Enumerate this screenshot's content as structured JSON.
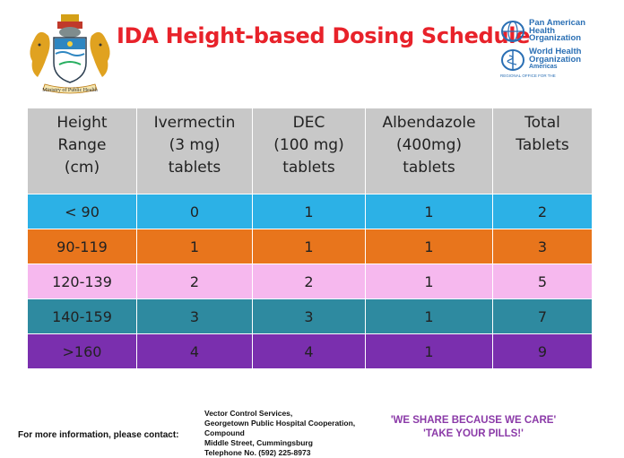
{
  "title": "IDA Height-based Dosing Schedule",
  "crest": {
    "caption": "Ministry of Public Health"
  },
  "logos": {
    "paho": [
      "Pan American",
      "Health",
      "Organization"
    ],
    "who": [
      "World Health",
      "Organization"
    ],
    "region": "Americas",
    "region_prefix": "REGIONAL OFFICE FOR THE"
  },
  "table": {
    "headers": [
      [
        "Height",
        "Range",
        "(cm)"
      ],
      [
        "Ivermectin",
        "(3 mg)",
        "tablets"
      ],
      [
        "DEC",
        "(100 mg)",
        "tablets"
      ],
      [
        "Albendazole",
        "(400mg)",
        "tablets"
      ],
      [
        "Total",
        "Tablets"
      ]
    ],
    "rows": [
      {
        "cells": [
          "< 90",
          "0",
          "1",
          "1",
          "2"
        ],
        "color": "#2cb1e6"
      },
      {
        "cells": [
          "90-119",
          "1",
          "1",
          "1",
          "3"
        ],
        "color": "#e8751c"
      },
      {
        "cells": [
          "120-139",
          "2",
          "2",
          "1",
          "5"
        ],
        "color": "#f6b8ee"
      },
      {
        "cells": [
          "140-159",
          "3",
          "3",
          "1",
          "7"
        ],
        "color": "#2e8aa0"
      },
      {
        "cells": [
          ">160",
          "4",
          "4",
          "1",
          "9"
        ],
        "color": "#7a2fae"
      }
    ]
  },
  "footer": {
    "contact_label": "For more information, please contact:",
    "address": [
      "Vector Control Services,",
      "Georgetown Public Hospital Cooperation,",
      "Compound",
      "Middle Street, Cummingsburg",
      "Telephone No. (592) 225-8973"
    ],
    "slogans": [
      "'WE SHARE BECAUSE WE CARE'",
      "'TAKE YOUR PILLS!'"
    ]
  },
  "colors": {
    "title": "#e8222a",
    "header_bg": "#c8c8c8",
    "slogan": "#8b3aa8",
    "logo": "#2a6fb4"
  }
}
